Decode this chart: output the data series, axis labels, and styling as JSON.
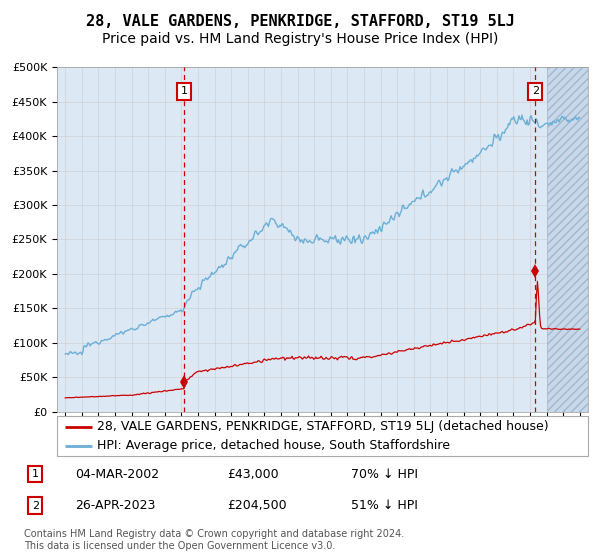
{
  "title": "28, VALE GARDENS, PENKRIDGE, STAFFORD, ST19 5LJ",
  "subtitle": "Price paid vs. HM Land Registry's House Price Index (HPI)",
  "ylabel_ticks": [
    "£0",
    "£50K",
    "£100K",
    "£150K",
    "£200K",
    "£250K",
    "£300K",
    "£350K",
    "£400K",
    "£450K",
    "£500K"
  ],
  "ytick_values": [
    0,
    50000,
    100000,
    150000,
    200000,
    250000,
    300000,
    350000,
    400000,
    450000,
    500000
  ],
  "xlim_start": 1994.5,
  "xlim_end": 2026.5,
  "ylim": [
    0,
    500000
  ],
  "sale1_date": 2002.17,
  "sale1_price": 43000,
  "sale2_date": 2023.32,
  "sale2_price": 204500,
  "legend_line1": "28, VALE GARDENS, PENKRIDGE, STAFFORD, ST19 5LJ (detached house)",
  "legend_line2": "HPI: Average price, detached house, South Staffordshire",
  "annotation1_date": "04-MAR-2002",
  "annotation1_price": "£43,000",
  "annotation1_hpi": "70% ↓ HPI",
  "annotation2_date": "26-APR-2023",
  "annotation2_price": "£204,500",
  "annotation2_hpi": "51% ↓ HPI",
  "footer": "Contains HM Land Registry data © Crown copyright and database right 2024.\nThis data is licensed under the Open Government Licence v3.0.",
  "hpi_color": "#6baed6",
  "price_color": "#cc0000",
  "bg_color": "#dce9f5",
  "sale_marker_color": "#cc0000",
  "dashed_line_color": "#cc0000",
  "title_fontsize": 11,
  "subtitle_fontsize": 10,
  "tick_fontsize": 8,
  "legend_fontsize": 9,
  "annotation_fontsize": 9,
  "footer_fontsize": 7
}
